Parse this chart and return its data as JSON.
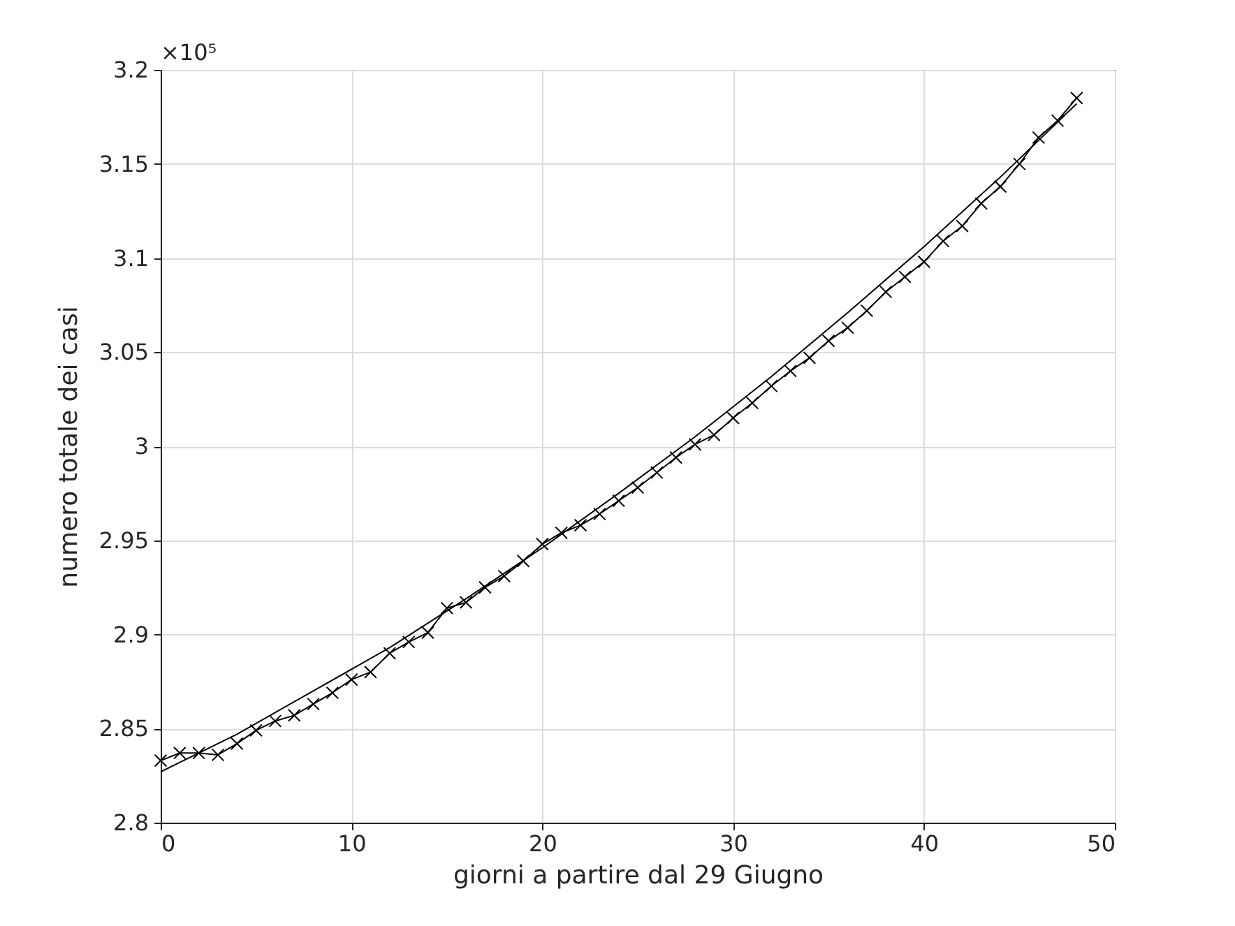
{
  "chart_data": {
    "type": "line",
    "xlabel": "giorni a partire dal 29 Giugno",
    "ylabel": "numero totale dei casi",
    "annotations": [
      "×10⁵"
    ],
    "xlim": [
      0,
      50
    ],
    "xticks": [
      0,
      10,
      20,
      30,
      40,
      50
    ],
    "ylim": [
      2.8,
      3.2
    ],
    "yticks": [
      2.8,
      2.85,
      2.9,
      2.95,
      3,
      3.05,
      3.1,
      3.15,
      3.2
    ],
    "grid": true,
    "series": [
      {
        "color": "#000000",
        "marker": "cross",
        "x": [
          0,
          1,
          2,
          3,
          4,
          5,
          6,
          7,
          8,
          9,
          10,
          11,
          12,
          13,
          14,
          15,
          16,
          17,
          18,
          19,
          20,
          21,
          22,
          23,
          24,
          25,
          26,
          27,
          28,
          29,
          30,
          31,
          32,
          33,
          34,
          35,
          36,
          37,
          38,
          39,
          40,
          41,
          42,
          43,
          44,
          45,
          46,
          47,
          48
        ],
        "values": [
          2.833,
          2.837,
          2.837,
          2.836,
          2.842,
          2.849,
          2.854,
          2.857,
          2.863,
          2.869,
          2.876,
          2.88,
          2.89,
          2.896,
          2.901,
          2.914,
          2.917,
          2.925,
          2.931,
          2.939,
          2.948,
          2.954,
          2.958,
          2.964,
          2.971,
          2.978,
          2.986,
          2.994,
          3.001,
          3.006,
          3.015,
          3.023,
          3.032,
          3.04,
          3.047,
          3.056,
          3.063,
          3.072,
          3.082,
          3.09,
          3.098,
          3.109,
          3.117,
          3.129,
          3.138,
          3.15,
          3.164,
          3.173,
          3.185
        ]
      },
      {
        "color": "#000000",
        "marker": "none",
        "x": [
          0,
          4,
          8,
          12,
          16,
          20,
          24,
          28,
          32,
          36,
          40,
          44,
          48
        ],
        "values": [
          2.827,
          2.847,
          2.87,
          2.893,
          2.919,
          2.946,
          2.975,
          3.005,
          3.037,
          3.071,
          3.106,
          3.143,
          3.182
        ]
      }
    ]
  }
}
